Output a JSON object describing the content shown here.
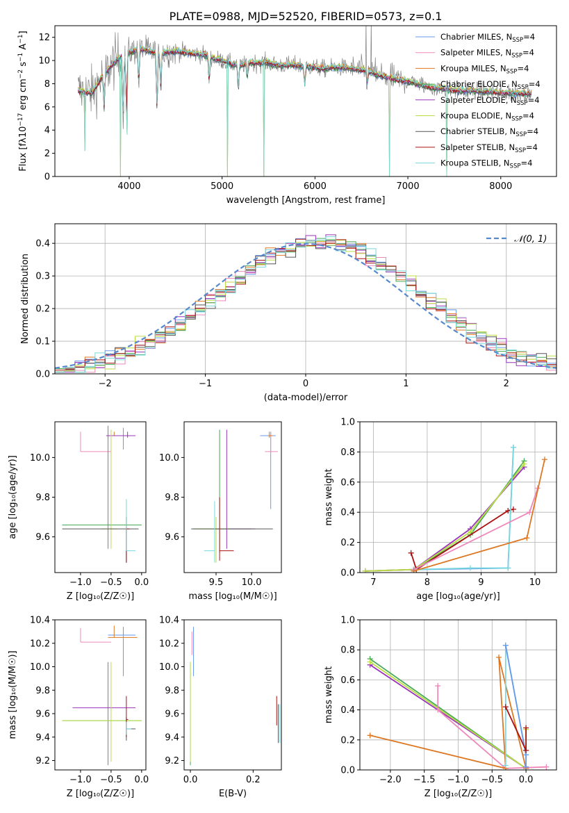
{
  "figure_title": "PLATE=0988, MJD=52520, FIBERID=0573, z=0.1",
  "model_colors": [
    "#6699ee",
    "#ee88bb",
    "#dd7722",
    "#44aa55",
    "#9933bb",
    "#bbdd44",
    "#555555",
    "#aa1111",
    "#77d8dd"
  ],
  "chart_data": [
    {
      "id": "spectrum",
      "type": "line",
      "title": "PLATE=0988, MJD=52520, FIBERID=0573, z=0.1",
      "xlabel": "wavelength [Angstrom, rest frame]",
      "ylabel_main": "Flux [fλ10",
      "ylabel_sup1": "−17",
      "ylabel_mid": " erg cm",
      "ylabel_sup2": "−2",
      "ylabel_mid2": " s",
      "ylabel_sup3": "−1",
      "ylabel_end": " A",
      "ylabel_sup4": "−1",
      "ylabel_close": "]",
      "xlim": [
        3200,
        8600
      ],
      "ylim": [
        0,
        13
      ],
      "xticks": [
        "4000",
        "5000",
        "6000",
        "7000",
        "8000"
      ],
      "yticks": [
        "0",
        "2",
        "4",
        "6",
        "8",
        "10",
        "12"
      ],
      "grid": false,
      "legend_position": "top-right",
      "legend": [
        {
          "main": "Chabrier MILES, N",
          "sub": "SSP",
          "tail": "=4"
        },
        {
          "main": "Salpeter MILES, N",
          "sub": "SSP",
          "tail": "=4"
        },
        {
          "main": "Kroupa MILES, N",
          "sub": "SSP",
          "tail": "=4"
        },
        {
          "main": "Chabrier ELODIE, N",
          "sub": "SSP",
          "tail": "=4"
        },
        {
          "main": "Salpeter ELODIE, N",
          "sub": "SSP",
          "tail": "=4"
        },
        {
          "main": "Kroupa ELODIE, N",
          "sub": "SSP",
          "tail": "=4"
        },
        {
          "main": "Chabrier STELIB, N",
          "sub": "SSP",
          "tail": "=4"
        },
        {
          "main": "Salpeter STELIB, N",
          "sub": "SSP",
          "tail": "=4"
        },
        {
          "main": "Kroupa STELIB, N",
          "sub": "SSP",
          "tail": "=4"
        }
      ],
      "data_color": "#808080",
      "continuum": [
        [
          3450,
          7.4
        ],
        [
          3600,
          7.2
        ],
        [
          3700,
          8.5
        ],
        [
          3800,
          9.5
        ],
        [
          3900,
          10.3
        ],
        [
          4000,
          10.7
        ],
        [
          4100,
          11.0
        ],
        [
          4200,
          10.9
        ],
        [
          4300,
          10.6
        ],
        [
          4400,
          10.7
        ],
        [
          4500,
          10.8
        ],
        [
          4600,
          10.7
        ],
        [
          4700,
          10.6
        ],
        [
          4800,
          10.5
        ],
        [
          4900,
          10.2
        ],
        [
          5000,
          10.0
        ],
        [
          5100,
          9.7
        ],
        [
          5200,
          9.6
        ],
        [
          5300,
          9.8
        ],
        [
          5400,
          9.8
        ],
        [
          5500,
          9.8
        ],
        [
          5600,
          9.6
        ],
        [
          5700,
          9.6
        ],
        [
          5800,
          9.6
        ],
        [
          5900,
          9.5
        ],
        [
          6000,
          9.4
        ],
        [
          6100,
          9.3
        ],
        [
          6200,
          9.4
        ],
        [
          6300,
          9.4
        ],
        [
          6400,
          9.3
        ],
        [
          6500,
          9.2
        ],
        [
          6600,
          9.0
        ],
        [
          6700,
          8.7
        ],
        [
          6800,
          8.5
        ],
        [
          6900,
          8.3
        ],
        [
          7000,
          8.2
        ],
        [
          7100,
          8.0
        ],
        [
          7200,
          7.8
        ],
        [
          7300,
          7.6
        ],
        [
          7400,
          7.6
        ],
        [
          7500,
          7.4
        ],
        [
          7600,
          7.4
        ],
        [
          7700,
          7.4
        ],
        [
          7800,
          7.3
        ],
        [
          7900,
          7.3
        ],
        [
          8000,
          7.2
        ],
        [
          8100,
          7.2
        ],
        [
          8200,
          7.2
        ],
        [
          8300,
          7.1
        ]
      ],
      "absorption_lines": [
        [
          3730,
          6.0
        ],
        [
          3935,
          5.2
        ],
        [
          3970,
          5.8
        ],
        [
          4102,
          8.2
        ],
        [
          4300,
          6.2
        ],
        [
          4340,
          7.8
        ],
        [
          4861,
          8.4
        ],
        [
          5175,
          7.6
        ],
        [
          5270,
          8.6
        ],
        [
          5890,
          8.0
        ],
        [
          6563,
          8.2
        ]
      ],
      "model_drops": [
        [
          3520,
          0
        ],
        [
          3905,
          0
        ],
        [
          5450,
          0
        ],
        [
          6800,
          0
        ],
        [
          7420,
          0
        ],
        [
          3980,
          3.6
        ],
        [
          5060,
          0
        ],
        [
          3525,
          2.2
        ]
      ]
    },
    {
      "id": "residual-histogram",
      "type": "bar",
      "xlabel": "(data-model)/error",
      "ylabel": "Normed distribution",
      "xlim": [
        -2.5,
        2.5
      ],
      "ylim": [
        0,
        0.46
      ],
      "xticks": [
        "−2",
        "−1",
        "0",
        "1",
        "2"
      ],
      "yticks": [
        "0.0",
        "0.1",
        "0.2",
        "0.3",
        "0.4"
      ],
      "grid": true,
      "legend_position": "top-right",
      "reference_curve": {
        "name": "𝒩(0, 1)",
        "mean": 0,
        "sigma": 1,
        "color": "#5588cc"
      },
      "bin_width": 0.1
    },
    {
      "id": "age-vs-Z",
      "type": "scatter",
      "xlabel": "Z [log₁₀(Z/Z☉)]",
      "ylabel": "age  [log₁₀(age/yr)]",
      "xlim": [
        -1.42,
        0.07
      ],
      "ylim": [
        9.42,
        10.18
      ],
      "xticks": [
        "−1.0",
        "−0.5",
        "0.0"
      ],
      "yticks": [
        "9.6",
        "9.8",
        "10.0"
      ],
      "grid": false,
      "points": [
        {
          "x": -0.3,
          "y": 10.11,
          "xerr": [
            0.25,
            0.2
          ],
          "yerr": [
            0.07,
            0.04
          ],
          "c": 0
        },
        {
          "x": -1.0,
          "y": 10.03,
          "xerr": [
            0.0,
            0.5
          ],
          "yerr": [
            0.0,
            0.1
          ],
          "c": 1
        },
        {
          "x": -0.45,
          "y": 10.11,
          "xerr": [
            0.1,
            0.3
          ],
          "yerr": [
            0.0,
            0.02
          ],
          "c": 2
        },
        {
          "x": -0.55,
          "y": 9.66,
          "xerr": [
            0.75,
            0.55
          ],
          "yerr": [
            0.12,
            0.5
          ],
          "c": 3
        },
        {
          "x": -0.23,
          "y": 10.11,
          "xerr": [
            0.35,
            0.13
          ],
          "yerr": [
            0.01,
            0.02
          ],
          "c": 4
        },
        {
          "x": -0.5,
          "y": 9.64,
          "xerr": [
            0.15,
            0.1
          ],
          "yerr": [
            0.1,
            0.5
          ],
          "c": 5
        },
        {
          "x": -0.25,
          "y": 9.64,
          "xerr": [
            1.05,
            0.2
          ],
          "yerr": [
            0.17,
            0.06
          ],
          "c": 6
        },
        {
          "x": -0.25,
          "y": 9.64,
          "xerr": [
            0.0,
            0.05
          ],
          "yerr": [
            0.17,
            0.0
          ],
          "c": 7
        },
        {
          "x": -0.25,
          "y": 9.53,
          "xerr": [
            0.0,
            0.15
          ],
          "yerr": [
            0.0,
            0.26
          ],
          "c": 8
        }
      ]
    },
    {
      "id": "age-vs-mass",
      "type": "scatter",
      "xlabel": "mass [log₁₀(M/M☉)]",
      "ylabel": "",
      "xlim": [
        9.05,
        10.42
      ],
      "ylim": [
        9.42,
        10.18
      ],
      "xticks": [
        "9.5",
        "10.0"
      ],
      "yticks": [
        "9.6",
        "9.8",
        "10.0"
      ],
      "grid": false,
      "points": [
        {
          "x": 10.27,
          "y": 10.11,
          "xerr": [
            0.15,
            0.07
          ],
          "yerr": [
            0.37,
            0.02
          ],
          "c": 0
        },
        {
          "x": 10.27,
          "y": 10.03,
          "xerr": [
            0.08,
            0.1
          ],
          "yerr": [
            0.0,
            0.1
          ],
          "c": 1
        },
        {
          "x": 10.25,
          "y": 10.11,
          "xerr": [
            0.02,
            0.05
          ],
          "yerr": [
            0.01,
            0.02
          ],
          "c": 2
        },
        {
          "x": 9.55,
          "y": 9.64,
          "xerr": [
            0.37,
            0.45
          ],
          "yerr": [
            0.12,
            0.5
          ],
          "c": 3
        },
        {
          "x": 9.65,
          "y": 9.64,
          "xerr": [
            0.15,
            0.4
          ],
          "yerr": [
            0.1,
            0.5
          ],
          "c": 4
        },
        {
          "x": 9.5,
          "y": 9.64,
          "xerr": [
            0.3,
            0.2
          ],
          "yerr": [
            0.17,
            0.06
          ],
          "c": 5
        },
        {
          "x": 9.45,
          "y": 9.64,
          "xerr": [
            0.3,
            0.85
          ],
          "yerr": [
            0.0,
            0.0
          ],
          "c": 6
        },
        {
          "x": 9.55,
          "y": 9.53,
          "xerr": [
            0.0,
            0.2
          ],
          "yerr": [
            0.05,
            0.27
          ],
          "c": 7
        },
        {
          "x": 9.48,
          "y": 9.53,
          "xerr": [
            0.15,
            0.0
          ],
          "yerr": [
            0.06,
            0.25
          ],
          "c": 8
        }
      ]
    },
    {
      "id": "massweight-vs-age",
      "type": "line",
      "xlabel": "age  [log₁₀(age/yr)]",
      "ylabel": "mass weight",
      "xlim": [
        6.75,
        10.4
      ],
      "ylim": [
        0,
        1.0
      ],
      "xticks": [
        "7",
        "8",
        "9",
        "10"
      ],
      "yticks": [
        "0.0",
        "0.2",
        "0.4",
        "0.6",
        "0.8",
        "1.0"
      ],
      "grid": true,
      "series": [
        {
          "c": 3,
          "x": [
            6.85,
            7.75,
            8.8,
            9.8
          ],
          "y": [
            0.01,
            0.02,
            0.25,
            0.74
          ]
        },
        {
          "c": 4,
          "x": [
            6.85,
            7.75,
            8.8,
            9.8
          ],
          "y": [
            0.01,
            0.02,
            0.29,
            0.7
          ]
        },
        {
          "c": 5,
          "x": [
            6.85,
            7.75,
            8.8,
            9.8
          ],
          "y": [
            0.01,
            0.02,
            0.27,
            0.72
          ]
        },
        {
          "c": 7,
          "x": [
            7.7,
            7.8,
            9.5,
            9.6
          ],
          "y": [
            0.13,
            0.02,
            0.41,
            0.42
          ]
        },
        {
          "c": 0,
          "x": [
            7.75,
            9.5,
            9.6
          ],
          "y": [
            0.02,
            0.03,
            0.83
          ]
        },
        {
          "c": 8,
          "x": [
            7.75,
            8.8,
            9.5,
            9.6
          ],
          "y": [
            0.02,
            0.03,
            0.03,
            0.83
          ]
        },
        {
          "c": 1,
          "x": [
            7.75,
            9.9,
            10.05
          ],
          "y": [
            0.02,
            0.4,
            0.56
          ]
        },
        {
          "c": 2,
          "x": [
            7.75,
            9.85,
            10.18
          ],
          "y": [
            0.01,
            0.23,
            0.75
          ]
        }
      ]
    },
    {
      "id": "mass-vs-Z",
      "type": "scatter",
      "xlabel": "Z [log₁₀(Z/Z☉)]",
      "ylabel": "mass [log₁₀(M/M☉)]",
      "xlim": [
        -1.42,
        0.07
      ],
      "ylim": [
        9.12,
        10.4
      ],
      "xticks": [
        "−1.0",
        "−0.5",
        "0.0"
      ],
      "yticks": [
        "9.2",
        "9.4",
        "9.6",
        "9.8",
        "10.0",
        "10.2",
        "10.4"
      ],
      "grid": false,
      "points": [
        {
          "x": -0.3,
          "y": 10.27,
          "xerr": [
            0.25,
            0.2
          ],
          "yerr": [
            0.35,
            0.07
          ],
          "c": 0
        },
        {
          "x": -1.0,
          "y": 10.21,
          "xerr": [
            0.0,
            0.5
          ],
          "yerr": [
            0.0,
            0.12
          ],
          "c": 1
        },
        {
          "x": -0.45,
          "y": 10.25,
          "xerr": [
            0.1,
            0.38
          ],
          "yerr": [
            0.0,
            0.1
          ],
          "c": 2
        },
        {
          "x": -0.55,
          "y": 9.54,
          "xerr": [
            0.75,
            0.55
          ],
          "yerr": [
            0.38,
            0.5
          ],
          "c": 3
        },
        {
          "x": -0.23,
          "y": 9.65,
          "xerr": [
            0.9,
            0.13
          ],
          "yerr": [
            0.0,
            0.0
          ],
          "c": 4
        },
        {
          "x": -0.5,
          "y": 9.54,
          "xerr": [
            0.8,
            0.5
          ],
          "yerr": [
            0.35,
            0.5
          ],
          "c": 5
        },
        {
          "x": -0.25,
          "y": 9.47,
          "xerr": [
            0.0,
            0.15
          ],
          "yerr": [
            0.1,
            0.1
          ],
          "c": 6
        },
        {
          "x": -0.25,
          "y": 9.55,
          "xerr": [
            0.0,
            0.03
          ],
          "yerr": [
            0.15,
            0.2
          ],
          "c": 7
        },
        {
          "x": -0.25,
          "y": 9.47,
          "xerr": [
            0.0,
            0.08
          ],
          "yerr": [
            0.05,
            0.06
          ],
          "c": 8
        }
      ]
    },
    {
      "id": "mass-vs-ebv",
      "type": "scatter",
      "xlabel": "E(B-V)",
      "ylabel": "",
      "xlim": [
        -0.02,
        0.29
      ],
      "ylim": [
        9.12,
        10.4
      ],
      "xticks": [
        "0.0",
        "0.2"
      ],
      "yticks": [
        "9.2",
        "9.4",
        "9.6",
        "9.8",
        "10.0",
        "10.2",
        "10.4"
      ],
      "grid": false,
      "points": [
        {
          "x": 0.01,
          "y": 10.27,
          "xerr": [
            0.0,
            0.0
          ],
          "yerr": [
            0.35,
            0.07
          ],
          "c": 0
        },
        {
          "x": 0.005,
          "y": 10.2,
          "xerr": [
            0.0,
            0.0
          ],
          "yerr": [
            0.1,
            0.1
          ],
          "c": 1
        },
        {
          "x": 0.0,
          "y": 9.54,
          "xerr": [
            0.0,
            0.0
          ],
          "yerr": [
            0.38,
            0.5
          ],
          "c": 3
        },
        {
          "x": 0.0,
          "y": 9.54,
          "xerr": [
            0.0,
            0.0
          ],
          "yerr": [
            0.35,
            0.5
          ],
          "c": 5
        },
        {
          "x": 0.275,
          "y": 9.6,
          "xerr": [
            0.0,
            0.0
          ],
          "yerr": [
            0.1,
            0.15
          ],
          "c": 7
        },
        {
          "x": 0.28,
          "y": 9.5,
          "xerr": [
            0.0,
            0.0
          ],
          "yerr": [
            0.15,
            0.18
          ],
          "c": 6
        },
        {
          "x": 0.285,
          "y": 9.5,
          "xerr": [
            0.0,
            0.0
          ],
          "yerr": [
            0.15,
            0.18
          ],
          "c": 8
        }
      ]
    },
    {
      "id": "massweight-vs-Z",
      "type": "line",
      "xlabel": "Z [log₁₀(Z/Z☉)]",
      "ylabel": "mass weight",
      "xlim": [
        -2.45,
        0.45
      ],
      "ylim": [
        0,
        1.0
      ],
      "xticks": [
        "−2.0",
        "−1.5",
        "−1.0",
        "−0.5",
        "0.0"
      ],
      "yticks": [
        "0.0",
        "0.2",
        "0.4",
        "0.6",
        "0.8",
        "1.0"
      ],
      "grid": true,
      "series": [
        {
          "c": 3,
          "x": [
            -2.3,
            0.0
          ],
          "y": [
            0.74,
            0.01
          ]
        },
        {
          "c": 4,
          "x": [
            -2.3,
            0.0
          ],
          "y": [
            0.7,
            0.01
          ]
        },
        {
          "c": 5,
          "x": [
            -2.3,
            0.0,
            0.0
          ],
          "y": [
            0.72,
            0.01,
            0.27
          ]
        },
        {
          "c": 1,
          "x": [
            -1.3,
            -1.3,
            -0.3,
            0.3
          ],
          "y": [
            0.56,
            0.4,
            0.01,
            0.02
          ]
        },
        {
          "c": 2,
          "x": [
            -2.3,
            -0.3,
            -0.4,
            0.0
          ],
          "y": [
            0.23,
            0.01,
            0.75,
            0.01
          ]
        },
        {
          "c": 8,
          "x": [
            -0.3,
            -0.3,
            0.0
          ],
          "y": [
            0.03,
            0.83,
            0.1
          ]
        },
        {
          "c": 0,
          "x": [
            -0.3,
            0.0,
            0.0
          ],
          "y": [
            0.83,
            0.1,
            0.02
          ]
        },
        {
          "c": 7,
          "x": [
            -0.3,
            0.0,
            0.0
          ],
          "y": [
            0.42,
            0.13,
            0.28
          ]
        }
      ]
    }
  ]
}
